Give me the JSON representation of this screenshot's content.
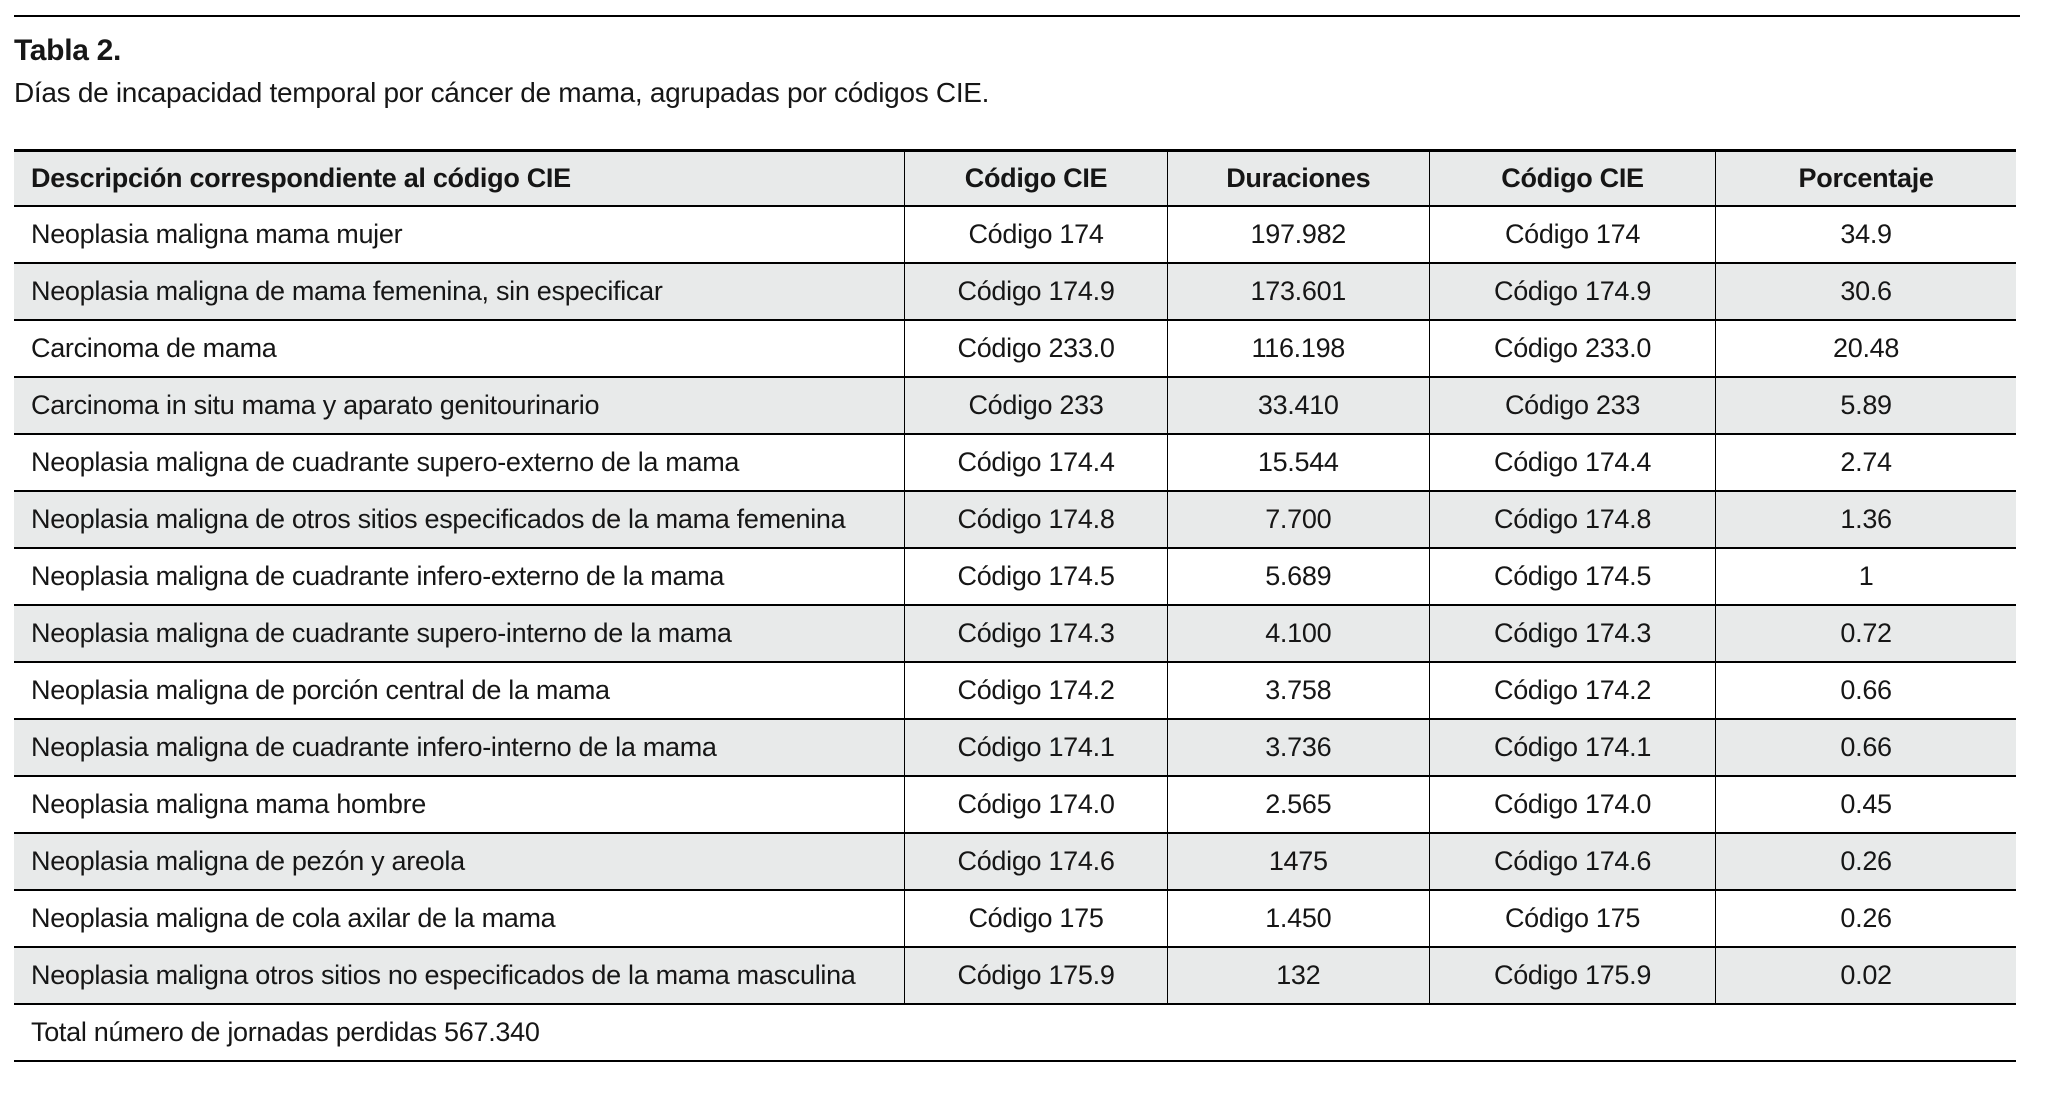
{
  "caption": {
    "title": "Tabla 2.",
    "text": "Días de incapacidad temporal por cáncer de mama, agrupadas por códigos CIE."
  },
  "table": {
    "columns": [
      "Descripción correspondiente al código CIE",
      "Código CIE",
      "Duraciones",
      "Código CIE",
      "Porcentaje"
    ],
    "rows": [
      {
        "description": "Neoplasia maligna mama mujer",
        "code": "Código 174",
        "duration": "197.982",
        "code2": "Código 174",
        "percentage": "34.9"
      },
      {
        "description": "Neoplasia maligna de mama femenina, sin especificar",
        "code": "Código 174.9",
        "duration": "173.601",
        "code2": "Código 174.9",
        "percentage": "30.6"
      },
      {
        "description": "Carcinoma de mama",
        "code": "Código 233.0",
        "duration": "116.198",
        "code2": "Código 233.0",
        "percentage": "20.48"
      },
      {
        "description": "Carcinoma in situ mama y aparato genitourinario",
        "code": "Código 233",
        "duration": "33.410",
        "code2": "Código 233",
        "percentage": "5.89"
      },
      {
        "description": "Neoplasia maligna de cuadrante supero-externo de la mama",
        "code": "Código 174.4",
        "duration": "15.544",
        "code2": "Código 174.4",
        "percentage": "2.74"
      },
      {
        "description": "Neoplasia maligna de otros sitios especificados de la mama femenina",
        "code": "Código 174.8",
        "duration": "7.700",
        "code2": "Código 174.8",
        "percentage": "1.36"
      },
      {
        "description": "Neoplasia maligna de cuadrante infero-externo de la mama",
        "code": "Código 174.5",
        "duration": "5.689",
        "code2": "Código 174.5",
        "percentage": "1"
      },
      {
        "description": "Neoplasia maligna de cuadrante supero-interno de la mama",
        "code": "Código 174.3",
        "duration": "4.100",
        "code2": "Código 174.3",
        "percentage": "0.72"
      },
      {
        "description": "Neoplasia maligna de porción central de la mama",
        "code": "Código 174.2",
        "duration": "3.758",
        "code2": "Código 174.2",
        "percentage": "0.66"
      },
      {
        "description": "Neoplasia maligna de cuadrante infero-interno de la mama",
        "code": "Código 174.1",
        "duration": "3.736",
        "code2": "Código 174.1",
        "percentage": "0.66"
      },
      {
        "description": "Neoplasia maligna mama hombre",
        "code": "Código 174.0",
        "duration": "2.565",
        "code2": "Código 174.0",
        "percentage": "0.45"
      },
      {
        "description": "Neoplasia maligna de pezón y areola",
        "code": "Código 174.6",
        "duration": "1475",
        "code2": "Código 174.6",
        "percentage": "0.26"
      },
      {
        "description": "Neoplasia maligna de cola axilar de la mama",
        "code": "Código 175",
        "duration": "1.450",
        "code2": "Código 175",
        "percentage": "0.26"
      },
      {
        "description": "Neoplasia maligna otros sitios no especificados de la mama masculina",
        "code": "Código 175.9",
        "duration": "132",
        "code2": "Código 175.9",
        "percentage": "0.02"
      }
    ],
    "footer": "Total número de jornadas perdidas 567.340"
  },
  "colors": {
    "stripe": "#e8eaea",
    "border": "#000000",
    "text": "#161616",
    "background": "#ffffff"
  }
}
